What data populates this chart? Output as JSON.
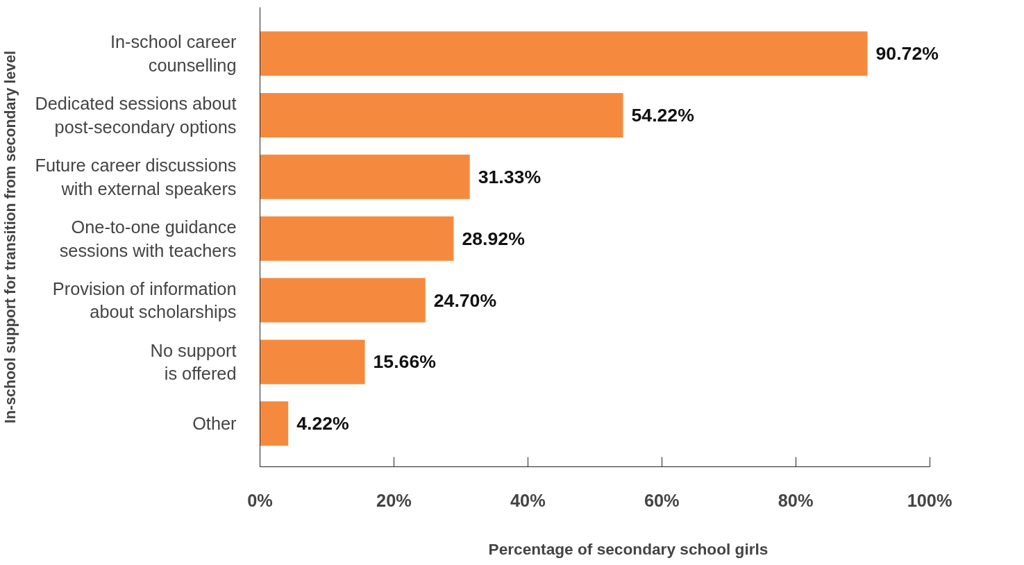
{
  "chart_data": {
    "type": "bar",
    "orientation": "horizontal",
    "categories": [
      "In-school career\ncounselling",
      "Dedicated sessions about\npost-secondary options",
      "Future career discussions\nwith external speakers",
      "One-to-one guidance\nsessions with teachers",
      "Provision of information\nabout scholarships",
      "No support\nis offered",
      "Other"
    ],
    "values": [
      90.72,
      54.22,
      31.33,
      28.92,
      24.7,
      15.66,
      4.22
    ],
    "value_labels": [
      "90.72%",
      "54.22%",
      "31.33%",
      "28.92%",
      "24.70%",
      "15.66%",
      "4.22%"
    ],
    "color": "#f58a3f",
    "xlim": [
      0,
      100
    ],
    "xticks": [
      {
        "value": 0,
        "label": "0%"
      },
      {
        "value": 20,
        "label": "20%"
      },
      {
        "value": 40,
        "label": "40%"
      },
      {
        "value": 60,
        "label": "60%"
      },
      {
        "value": 80,
        "label": "80%"
      },
      {
        "value": 100,
        "label": "100%"
      }
    ],
    "xlabel": "Percentage of secondary school girls",
    "ylabel": "In-school support for transition from secondary level",
    "grid": false
  }
}
